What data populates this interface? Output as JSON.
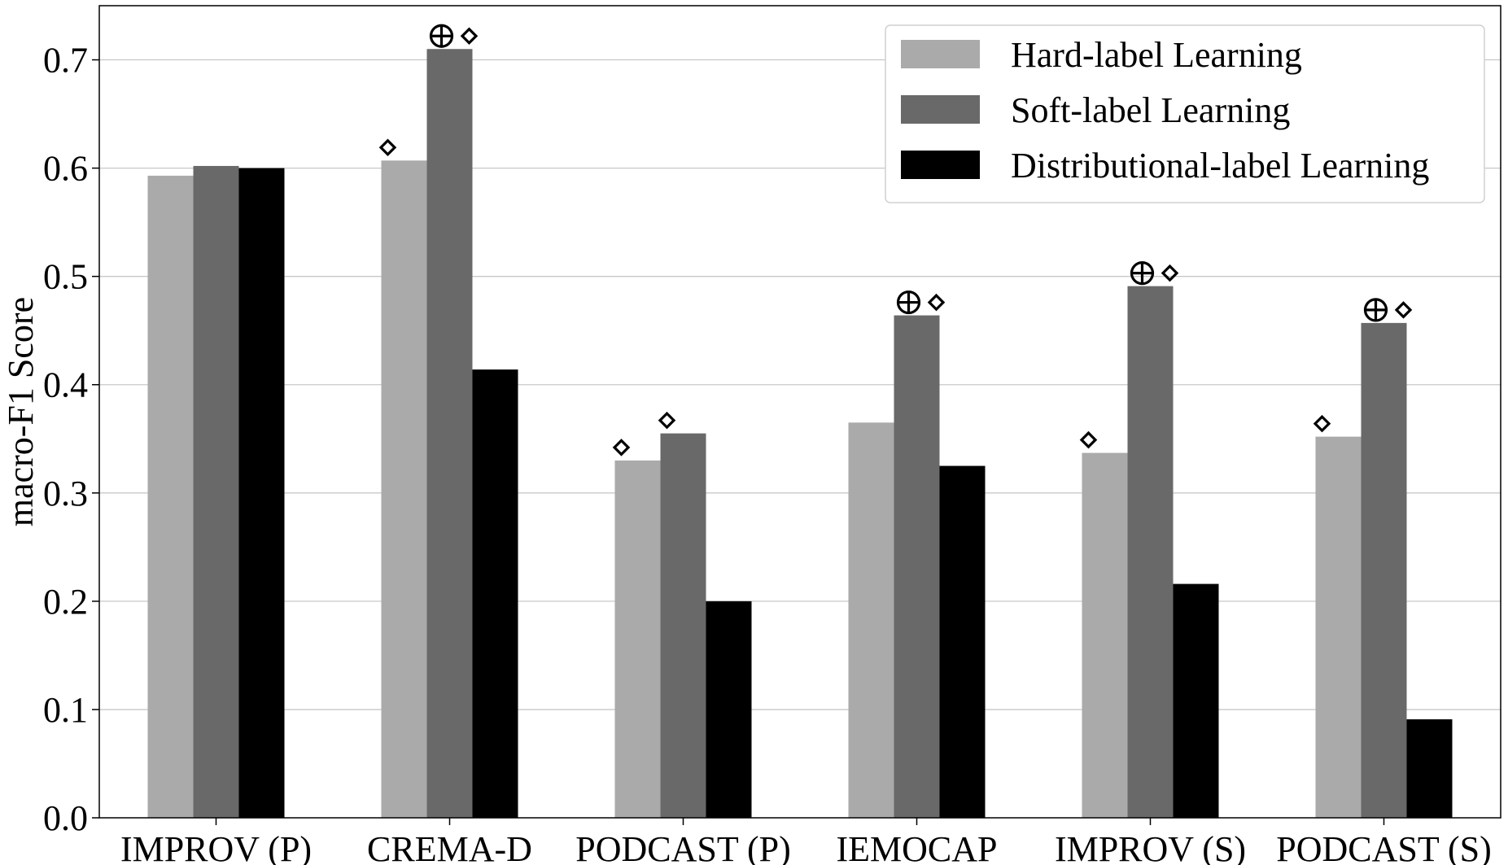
{
  "chart_data": {
    "type": "bar",
    "title": "",
    "xlabel": "",
    "ylabel": "macro-F1 Score",
    "ylim": [
      0,
      0.75
    ],
    "yticks": [
      0.0,
      0.1,
      0.2,
      0.3,
      0.4,
      0.5,
      0.6,
      0.7
    ],
    "ytick_labels": [
      "0.0",
      "0.1",
      "0.2",
      "0.3",
      "0.4",
      "0.5",
      "0.6",
      "0.7"
    ],
    "grid": "horizontal",
    "legend_position": "top-right",
    "categories": [
      "IMPROV (P)",
      "CREMA-D",
      "PODCAST (P)",
      "IEMOCAP",
      "IMPROV (S)",
      "PODCAST (S)"
    ],
    "series": [
      {
        "name": "Hard-label Learning",
        "color": "#aaaaaa",
        "values": [
          0.593,
          0.607,
          0.33,
          0.365,
          0.337,
          0.352
        ]
      },
      {
        "name": "Soft-label Learning",
        "color": "#696969",
        "values": [
          0.602,
          0.71,
          0.355,
          0.464,
          0.491,
          0.457
        ]
      },
      {
        "name": "Distributional-label Learning",
        "color": "#000000",
        "values": [
          0.6,
          0.414,
          0.2,
          0.325,
          0.216,
          0.091
        ]
      }
    ],
    "annotations": [
      {
        "category_index": 1,
        "series_index": 0,
        "markers": [
          "diamond"
        ]
      },
      {
        "category_index": 1,
        "series_index": 1,
        "markers": [
          "circled-plus",
          "diamond"
        ]
      },
      {
        "category_index": 2,
        "series_index": 0,
        "markers": [
          "diamond"
        ]
      },
      {
        "category_index": 2,
        "series_index": 1,
        "markers": [
          "diamond"
        ]
      },
      {
        "category_index": 3,
        "series_index": 1,
        "markers": [
          "circled-plus",
          "diamond"
        ]
      },
      {
        "category_index": 4,
        "series_index": 0,
        "markers": [
          "diamond"
        ]
      },
      {
        "category_index": 4,
        "series_index": 1,
        "markers": [
          "circled-plus",
          "diamond"
        ]
      },
      {
        "category_index": 5,
        "series_index": 0,
        "markers": [
          "diamond"
        ]
      },
      {
        "category_index": 5,
        "series_index": 1,
        "markers": [
          "circled-plus",
          "diamond"
        ]
      }
    ]
  }
}
